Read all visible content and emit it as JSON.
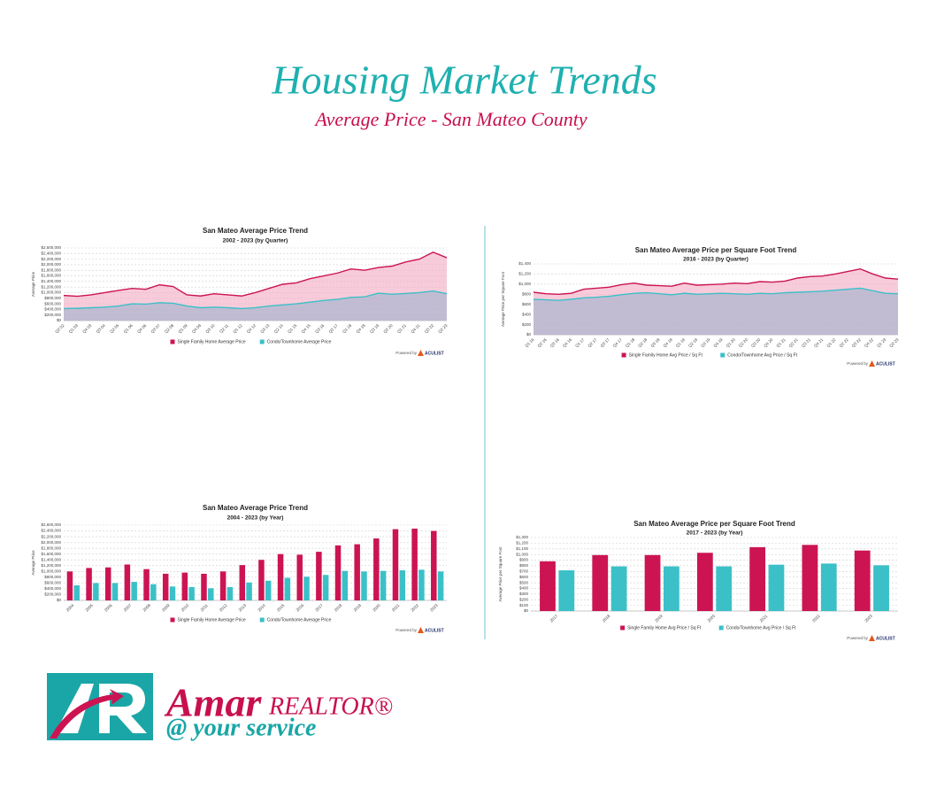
{
  "header": {
    "title": "Housing Market Trends",
    "subtitle": "Average Price - San Mateo County"
  },
  "logo": {
    "name": "Amar",
    "role": "REALTOR®",
    "tagline": "@ your service"
  },
  "chart_data": [
    {
      "type": "area",
      "title": "San Mateo Average Price Trend",
      "subtitle": "2002 - 2023 (by Quarter)",
      "y_label": "Average Price",
      "categories": [
        "Q2 02",
        "Q1 03",
        "Q4 03",
        "Q3 04",
        "Q2 05",
        "Q1 06",
        "Q4 06",
        "Q3 07",
        "Q2 08",
        "Q1 09",
        "Q4 09",
        "Q3 10",
        "Q2 11",
        "Q1 12",
        "Q4 12",
        "Q3 13",
        "Q2 14",
        "Q1 15",
        "Q4 15",
        "Q3 16",
        "Q2 17",
        "Q1 18",
        "Q4 18",
        "Q3 19",
        "Q2 20",
        "Q1 21",
        "Q4 21",
        "Q3 22",
        "Q2 23"
      ],
      "series": [
        {
          "name": "Single Family Home Average Price",
          "color": "#cc1452",
          "values": [
            900000,
            870000,
            920000,
            1000000,
            1080000,
            1150000,
            1120000,
            1280000,
            1220000,
            920000,
            880000,
            960000,
            920000,
            880000,
            1000000,
            1150000,
            1300000,
            1350000,
            1500000,
            1600000,
            1700000,
            1850000,
            1800000,
            1900000,
            1950000,
            2100000,
            2200000,
            2450000,
            2250000
          ]
        },
        {
          "name": "Condo/Townhome Average Price",
          "color": "#3cc0c8",
          "values": [
            430000,
            440000,
            460000,
            480000,
            520000,
            600000,
            590000,
            640000,
            620000,
            520000,
            460000,
            480000,
            460000,
            430000,
            460000,
            520000,
            560000,
            600000,
            660000,
            720000,
            760000,
            830000,
            850000,
            980000,
            940000,
            970000,
            1000000,
            1060000,
            960000
          ]
        }
      ],
      "ylim": [
        0,
        2600000
      ],
      "yticks": [
        {
          "value": 0,
          "label": "$0"
        },
        {
          "value": 200000,
          "label": "$200,000"
        },
        {
          "value": 400000,
          "label": "$400,000"
        },
        {
          "value": 600000,
          "label": "$600,000"
        },
        {
          "value": 800000,
          "label": "$800,000"
        },
        {
          "value": 1000000,
          "label": "$1,000,000"
        },
        {
          "value": 1200000,
          "label": "$1,200,000"
        },
        {
          "value": 1400000,
          "label": "$1,400,000"
        },
        {
          "value": 1600000,
          "label": "$1,600,000"
        },
        {
          "value": 1800000,
          "label": "$1,800,000"
        },
        {
          "value": 2000000,
          "label": "$2,000,000"
        },
        {
          "value": 2200000,
          "label": "$2,200,000"
        },
        {
          "value": 2400000,
          "label": "$2,400,000"
        },
        {
          "value": 2600000,
          "label": "$2,600,000"
        }
      ],
      "grid": true,
      "credit": "Powered by",
      "brand": "ACULIST"
    },
    {
      "type": "area",
      "title": "San Mateo Average Price per Square Foot Trend",
      "subtitle": "2016 - 2023 (by Quarter)",
      "y_label": "Average Price per Square Foot",
      "categories": [
        "Q1 16",
        "Q2 16",
        "Q3 16",
        "Q4 16",
        "Q1 17",
        "Q2 17",
        "Q3 17",
        "Q4 17",
        "Q1 18",
        "Q2 18",
        "Q3 18",
        "Q4 18",
        "Q1 19",
        "Q2 19",
        "Q3 19",
        "Q4 19",
        "Q1 20",
        "Q2 20",
        "Q3 20",
        "Q4 20",
        "Q1 21",
        "Q2 21",
        "Q3 21",
        "Q4 21",
        "Q1 22",
        "Q2 22",
        "Q3 22",
        "Q4 22",
        "Q1 23",
        "Q2 23"
      ],
      "series": [
        {
          "name": "Single Family Home Avg Price / Sq Ft",
          "color": "#cc1452",
          "values": [
            840,
            810,
            800,
            820,
            900,
            920,
            940,
            990,
            1020,
            980,
            970,
            960,
            1020,
            980,
            990,
            1000,
            1020,
            1010,
            1050,
            1040,
            1060,
            1120,
            1150,
            1160,
            1200,
            1250,
            1300,
            1200,
            1120,
            1100
          ]
        },
        {
          "name": "Condo/Townhome Avg Price / Sq Ft",
          "color": "#3cc0c8",
          "values": [
            700,
            690,
            680,
            700,
            730,
            740,
            760,
            790,
            820,
            830,
            810,
            790,
            820,
            800,
            810,
            820,
            810,
            800,
            820,
            810,
            830,
            840,
            850,
            860,
            880,
            900,
            920,
            870,
            820,
            810
          ]
        }
      ],
      "ylim": [
        0,
        1400
      ],
      "yticks": [
        {
          "value": 0,
          "label": "$0"
        },
        {
          "value": 200,
          "label": "$200"
        },
        {
          "value": 400,
          "label": "$400"
        },
        {
          "value": 600,
          "label": "$600"
        },
        {
          "value": 800,
          "label": "$800"
        },
        {
          "value": 1000,
          "label": "$1,000"
        },
        {
          "value": 1200,
          "label": "$1,200"
        },
        {
          "value": 1400,
          "label": "$1,400"
        }
      ],
      "grid": true,
      "credit": "Powered by",
      "brand": "ACULIST"
    },
    {
      "type": "bar",
      "title": "San Mateo Average Price Trend",
      "subtitle": "2004 - 2023 (by Year)",
      "y_label": "Average Price",
      "categories": [
        "2004",
        "2005",
        "2006",
        "2007",
        "2008",
        "2009",
        "2010",
        "2011",
        "2012",
        "2013",
        "2014",
        "2015",
        "2016",
        "2017",
        "2018",
        "2019",
        "2020",
        "2021",
        "2022",
        "2023"
      ],
      "series": [
        {
          "name": "Single Family Home Average Price",
          "color": "#cc1452",
          "values": [
            1000000,
            1120000,
            1140000,
            1240000,
            1080000,
            920000,
            960000,
            920000,
            1000000,
            1220000,
            1400000,
            1600000,
            1580000,
            1680000,
            1900000,
            1940000,
            2140000,
            2460000,
            2480000,
            2400000
          ]
        },
        {
          "name": "Condo/Townhome Average Price",
          "color": "#3cc0c8",
          "values": [
            520000,
            600000,
            600000,
            640000,
            560000,
            480000,
            460000,
            420000,
            460000,
            620000,
            680000,
            780000,
            820000,
            880000,
            1020000,
            1000000,
            1020000,
            1040000,
            1060000,
            1000000
          ]
        }
      ],
      "ylim": [
        0,
        2600000
      ],
      "yticks": [
        {
          "value": 0,
          "label": "$0"
        },
        {
          "value": 200000,
          "label": "$200,000"
        },
        {
          "value": 400000,
          "label": "$400,000"
        },
        {
          "value": 600000,
          "label": "$600,000"
        },
        {
          "value": 800000,
          "label": "$800,000"
        },
        {
          "value": 1000000,
          "label": "$1,000,000"
        },
        {
          "value": 1200000,
          "label": "$1,200,000"
        },
        {
          "value": 1400000,
          "label": "$1,400,000"
        },
        {
          "value": 1600000,
          "label": "$1,600,000"
        },
        {
          "value": 1800000,
          "label": "$1,800,000"
        },
        {
          "value": 2000000,
          "label": "$2,000,000"
        },
        {
          "value": 2200000,
          "label": "$2,200,000"
        },
        {
          "value": 2400000,
          "label": "$2,400,000"
        },
        {
          "value": 2600000,
          "label": "$2,600,000"
        }
      ],
      "grid": true,
      "credit": "Powered by",
      "brand": "ACULIST"
    },
    {
      "type": "bar",
      "title": "San Mateo Average Price per Square Foot Trend",
      "subtitle": "2017 - 2023 (by Year)",
      "y_label": "Average Price per Square Foot",
      "categories": [
        "2017",
        "2018",
        "2019",
        "2020",
        "2021",
        "2022",
        "2023"
      ],
      "series": [
        {
          "name": "Single Family Home Avg Price / Sq Ft",
          "color": "#cc1452",
          "values": [
            880,
            990,
            990,
            1030,
            1130,
            1170,
            1070
          ]
        },
        {
          "name": "Condo/Townhome Avg Price / Sq Ft",
          "color": "#3cc0c8",
          "values": [
            720,
            790,
            790,
            790,
            820,
            840,
            810
          ]
        }
      ],
      "ylim": [
        0,
        1300
      ],
      "yticks": [
        {
          "value": 0,
          "label": "$0"
        },
        {
          "value": 100,
          "label": "$100"
        },
        {
          "value": 200,
          "label": "$200"
        },
        {
          "value": 300,
          "label": "$300"
        },
        {
          "value": 400,
          "label": "$400"
        },
        {
          "value": 500,
          "label": "$500"
        },
        {
          "value": 600,
          "label": "$600"
        },
        {
          "value": 700,
          "label": "$700"
        },
        {
          "value": 800,
          "label": "$800"
        },
        {
          "value": 900,
          "label": "$900"
        },
        {
          "value": 1000,
          "label": "$1,000"
        },
        {
          "value": 1100,
          "label": "$1,100"
        },
        {
          "value": 1200,
          "label": "$1,200"
        },
        {
          "value": 1300,
          "label": "$1,300"
        }
      ],
      "grid": true,
      "credit": "Powered by",
      "brand": "ACULIST"
    }
  ]
}
